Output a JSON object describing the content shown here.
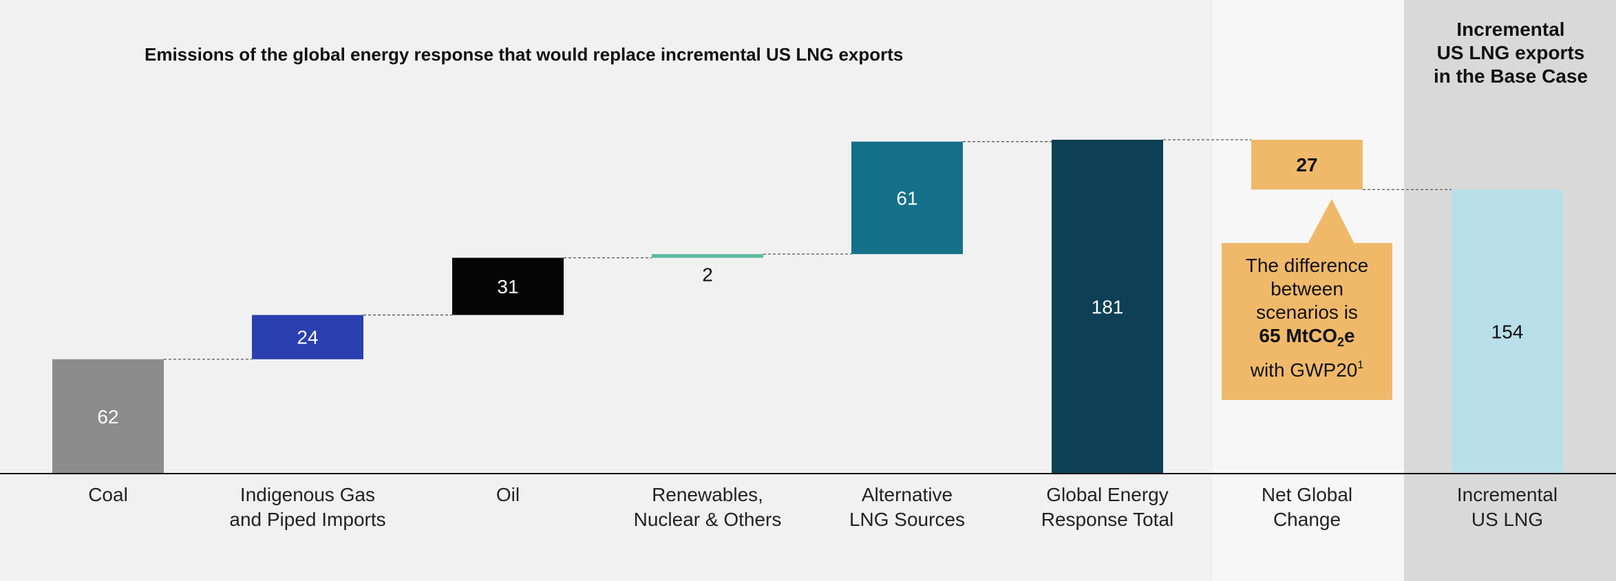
{
  "title": "Emissions of the global energy response that would replace incremental US LNG exports",
  "right_title": [
    "Incremental",
    "US LNG exports",
    "in the Base Case"
  ],
  "callout": {
    "line1": "The difference",
    "line2": "between",
    "line3": "scenarios is",
    "bold_prefix": "65 MtCO",
    "bold_sub": "2",
    "bold_suffix": "e",
    "last_prefix": "with GWP20",
    "last_sup": "1"
  },
  "colors": {
    "coal": "#8c8c8c",
    "indigenous": "#2a3fb0",
    "oil": "#050505",
    "renewables": "#5cb8a0",
    "alternative": "#15708a",
    "global_total": "#0d3f55",
    "net_change": "#f0b96a",
    "us_lng": "#b9dfe9",
    "panel_left": "#f1f1f1",
    "panel_mid": "#f7f7f7",
    "panel_right": "#d9d9d9"
  },
  "chart_data": {
    "type": "bar",
    "subtype": "waterfall",
    "categories": [
      [
        "Coal"
      ],
      [
        "Indigenous Gas",
        "and Piped Imports"
      ],
      [
        "Oil"
      ],
      [
        "Renewables,",
        "Nuclear & Others"
      ],
      [
        "Alternative",
        "LNG Sources"
      ],
      [
        "Global Energy",
        "Response Total"
      ],
      [
        "Net Global",
        "Change"
      ],
      [
        "Incremental",
        "US LNG"
      ]
    ],
    "bars": [
      {
        "kind": "increment",
        "base": 0,
        "value": 62,
        "label": "62",
        "color_key": "coal"
      },
      {
        "kind": "increment",
        "base": 62,
        "value": 24,
        "label": "24",
        "color_key": "indigenous"
      },
      {
        "kind": "increment",
        "base": 86,
        "value": 31,
        "label": "31",
        "color_key": "oil"
      },
      {
        "kind": "increment",
        "base": 117,
        "value": 2,
        "label": "2",
        "color_key": "renewables"
      },
      {
        "kind": "increment",
        "base": 119,
        "value": 61,
        "label": "61",
        "color_key": "alternative"
      },
      {
        "kind": "total",
        "base": 0,
        "value": 181,
        "label": "181",
        "color_key": "global_total"
      },
      {
        "kind": "difference",
        "base": 154,
        "value": 27,
        "label": "27",
        "color_key": "net_change"
      },
      {
        "kind": "total",
        "base": 0,
        "value": 154,
        "label": "154",
        "color_key": "us_lng"
      }
    ],
    "ylim": [
      0,
      181
    ]
  }
}
